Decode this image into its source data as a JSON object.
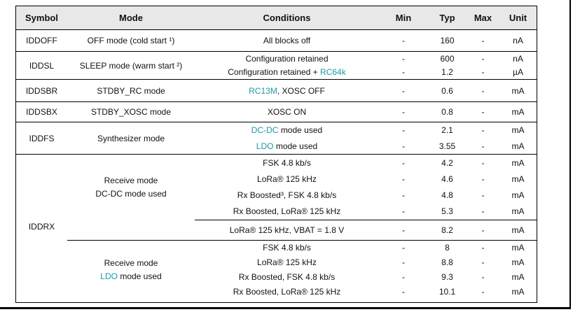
{
  "colors": {
    "teal": "#1B9AA2",
    "header_bg": "#E8E8E8",
    "border": "#000000"
  },
  "header": {
    "symbol": "Symbol",
    "mode": "Mode",
    "conditions": "Conditions",
    "min": "Min",
    "typ": "Typ",
    "max": "Max",
    "unit": "Unit"
  },
  "rows": {
    "iddoff": {
      "symbol": "IDDOFF",
      "mode": "OFF mode (cold start ¹)",
      "lines": [
        {
          "c1": "All blocks off",
          "min": "-",
          "typ": "160",
          "max": "-",
          "unit": "nA"
        }
      ]
    },
    "iddsl": {
      "symbol": "IDDSL",
      "mode": "SLEEP mode (warm start ²)",
      "lines": [
        {
          "c1": "Configuration retained",
          "min": "-",
          "typ": "600",
          "max": "-",
          "unit": "nA"
        },
        {
          "c1": "Configuration retained + ",
          "ct": "RC64k",
          "min": "-",
          "typ": "1.2",
          "max": "-",
          "unit": "µA"
        }
      ]
    },
    "iddsbr": {
      "symbol": "IDDSBR",
      "mode": "STDBY_RC mode",
      "lines": [
        {
          "ct": "RC13M",
          "c2": ", XOSC OFF",
          "min": "-",
          "typ": "0.6",
          "max": "-",
          "unit": "mA"
        }
      ]
    },
    "iddsbx": {
      "symbol": "IDDSBX",
      "mode": "STDBY_XOSC mode",
      "lines": [
        {
          "c1": "XOSC ON",
          "min": "-",
          "typ": "0.8",
          "max": "-",
          "unit": "mA"
        }
      ]
    },
    "iddfs": {
      "symbol": "IDDFS",
      "mode": "Synthesizer mode",
      "lines": [
        {
          "ct": "DC-DC",
          "c2": " mode used",
          "min": "-",
          "typ": "2.1",
          "max": "-",
          "unit": "mA"
        },
        {
          "ct": "LDO",
          "c2": " mode used",
          "min": "-",
          "typ": "3.55",
          "max": "-",
          "unit": "mA"
        }
      ]
    },
    "iddrx": {
      "symbol": "IDDRX",
      "group_a": {
        "mode_line1": "Receive mode",
        "mode_line2_rest": "DC-DC mode used",
        "lines": [
          {
            "c1": "FSK 4.8 kb/s",
            "min": "-",
            "typ": "4.2",
            "max": "-",
            "unit": "mA"
          },
          {
            "c1": "LoRa® 125 kHz",
            "min": "-",
            "typ": "4.6",
            "max": "-",
            "unit": "mA"
          },
          {
            "c1": "Rx Boosted³, FSK 4.8 kb/s",
            "min": "-",
            "typ": "4.8",
            "max": "-",
            "unit": "mA"
          },
          {
            "c1": "Rx Boosted, LoRa® 125 kHz",
            "min": "-",
            "typ": "5.3",
            "max": "-",
            "unit": "mA"
          }
        ]
      },
      "vbat_line": {
        "c1": "LoRa® 125 kHz, VBAT = 1.8 V",
        "min": "-",
        "typ": "8.2",
        "max": "-",
        "unit": "mA"
      },
      "group_b": {
        "mode_line1": "Receive mode",
        "mode_line2_teal": "LDO",
        "mode_line2_rest": " mode used",
        "lines": [
          {
            "c1": "FSK 4.8 kb/s",
            "min": "-",
            "typ": "8",
            "max": "-",
            "unit": "mA"
          },
          {
            "c1": "LoRa® 125 kHz",
            "min": "-",
            "typ": "8.8",
            "max": "-",
            "unit": "mA"
          },
          {
            "c1": "Rx Boosted, FSK 4.8 kb/s",
            "min": "-",
            "typ": "9.3",
            "max": "-",
            "unit": "mA"
          },
          {
            "c1": "Rx Boosted, LoRa® 125 kHz",
            "min": "-",
            "typ": "10.1",
            "max": "-",
            "unit": "mA"
          }
        ]
      }
    }
  }
}
